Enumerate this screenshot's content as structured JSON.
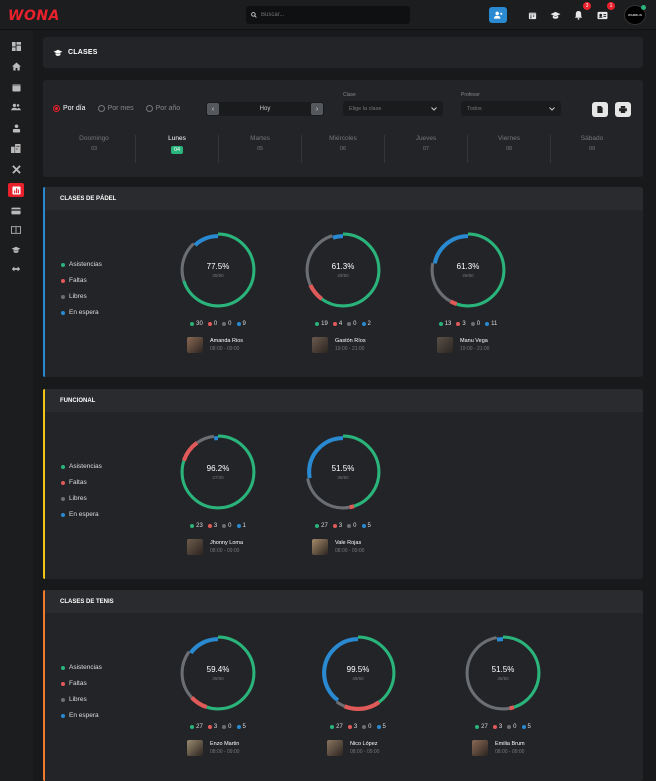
{
  "app": {
    "logo": "WONA"
  },
  "search": {
    "placeholder": "Buscar..."
  },
  "topbar": {
    "notifications_count": "3",
    "messages_count": "1",
    "avatar_text": "WAMBLIN"
  },
  "header": {
    "title": "CLASES"
  },
  "filters": {
    "view_options": [
      "Por día",
      "Por mes",
      "Por año"
    ],
    "selected_view": "Por día",
    "date_label": "Hoy",
    "clase": {
      "label": "Clase",
      "placeholder": "Elige la clase"
    },
    "profesor": {
      "label": "Profesor",
      "value": "Todos"
    }
  },
  "days": [
    {
      "name": "Doomingo",
      "date": "03"
    },
    {
      "name": "Lunes",
      "date": "04",
      "selected": true
    },
    {
      "name": "Martes",
      "date": "05"
    },
    {
      "name": "Miércoles",
      "date": "06"
    },
    {
      "name": "Jueves",
      "date": "07"
    },
    {
      "name": "Viernes",
      "date": "08"
    },
    {
      "name": "Sábado",
      "date": "09"
    }
  ],
  "legend": [
    "Asistencias",
    "Faltas",
    "Libres",
    "En espera"
  ],
  "colors": {
    "asistencias": "#2ab37a",
    "faltas": "#e05a5a",
    "libres": "#6b6e73",
    "espera": "#2a8ad1",
    "padel": "#2a8ad1",
    "funcional": "#f0c419",
    "tenis": "#f07a2d"
  },
  "sections": [
    {
      "title": "CLASES DE PÁDEL",
      "cards": [
        {
          "pct": "77.5%",
          "frac": "39/50",
          "asis": 30,
          "faltas": 0,
          "libres": 0,
          "espera": 9,
          "name": "Amanda Rios",
          "time": "08:00 - 09:00"
        },
        {
          "pct": "61.3%",
          "frac": "29/50",
          "asis": 19,
          "faltas": 4,
          "libres": 0,
          "espera": 2,
          "name": "Gastón Ríos",
          "time": "19:00 - 21:00"
        },
        {
          "pct": "61.3%",
          "frac": "29/50",
          "asis": 13,
          "faltas": 3,
          "libres": 0,
          "espera": 11,
          "name": "Manu Vega",
          "time": "19:00 - 21:00"
        }
      ]
    },
    {
      "title": "FUNCIONAL",
      "cards": [
        {
          "pct": "96.2%",
          "frac": "27/30",
          "asis": 23,
          "faltas": 3,
          "libres": 0,
          "espera": 1,
          "name": "Jhonny Loma",
          "time": "08:00 - 09:00"
        },
        {
          "pct": "51.5%",
          "frac": "36/50",
          "asis": 27,
          "faltas": 3,
          "libres": 0,
          "espera": 5,
          "name": "Vale Rojas",
          "time": "08:00 - 09:00"
        }
      ]
    },
    {
      "title": "CLASES DE TENIS",
      "cards": [
        {
          "pct": "59.4%",
          "frac": "39/50",
          "asis": 27,
          "faltas": 3,
          "libres": 0,
          "espera": 5,
          "name": "Enzo Martin",
          "time": "08:00 - 09:00"
        },
        {
          "pct": "99.5%",
          "frac": "49/50",
          "asis": 27,
          "faltas": 3,
          "libres": 0,
          "espera": 5,
          "name": "Nico López",
          "time": "08:00 - 09:00"
        },
        {
          "pct": "51.5%",
          "frac": "36/50",
          "asis": 27,
          "faltas": 3,
          "libres": 0,
          "espera": 5,
          "name": "Emilia Brum",
          "time": "08:00 - 09:00"
        }
      ]
    }
  ]
}
